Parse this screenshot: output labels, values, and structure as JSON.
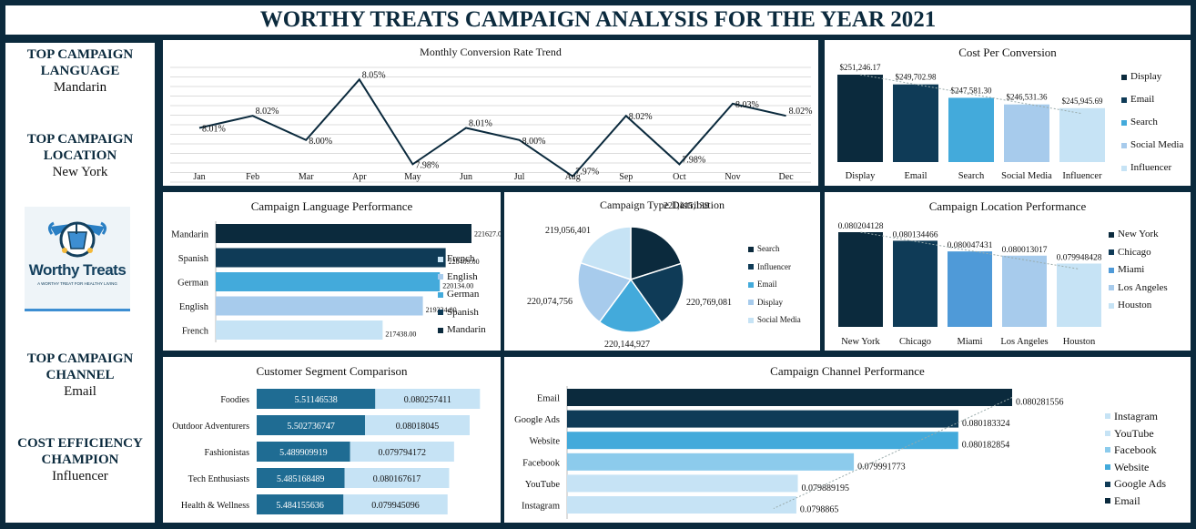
{
  "header": {
    "title": "WORTHY TREATS CAMPAIGN ANALYSIS FOR THE YEAR 2021"
  },
  "kpis": [
    {
      "label": "TOP CAMPAIGN LANGUAGE",
      "value": "Mandarin"
    },
    {
      "label": "TOP CAMPAIGN LOCATION",
      "value": "New York"
    },
    {
      "label": "TOP CAMPAIGN CHANNEL",
      "value": "Email"
    },
    {
      "label": "COST EFFICIENCY CHAMPION",
      "value": "Influencer"
    }
  ],
  "logo": {
    "brand": "Worthy Treats",
    "tagline": "A WORTHY TREAT FOR HEALTHY LIVING"
  },
  "colors": {
    "navy": "#0b2a3d",
    "dark": "#0f3b57",
    "mid": "#43aadb",
    "steel": "#4f9ad8",
    "light": "#a7cbec",
    "pale": "#c6e3f5"
  },
  "chart_data": [
    {
      "id": "monthly",
      "type": "line",
      "title": "Monthly Conversion Rate Trend",
      "categories": [
        "Jan",
        "Feb",
        "Mar",
        "Apr",
        "May",
        "Jun",
        "Jul",
        "Aug",
        "Sep",
        "Oct",
        "Nov",
        "Dec"
      ],
      "values": [
        8.01,
        8.02,
        8.0,
        8.05,
        7.98,
        8.01,
        8.0,
        7.97,
        8.02,
        7.98,
        8.03,
        8.02
      ],
      "labels": [
        "8.01%",
        "8.02%",
        "8.00%",
        "8.05%",
        "7.98%",
        "8.01%",
        "8.00%",
        "7.97%",
        "8.02%",
        "7.98%",
        "8.03%",
        "8.02%"
      ],
      "grid": true
    },
    {
      "id": "cost",
      "type": "bar",
      "title": "Cost Per Conversion",
      "categories": [
        "Display",
        "Email",
        "Search",
        "Social Media",
        "Influencer"
      ],
      "values": [
        251246.17,
        249702.98,
        247581.3,
        246531.36,
        245945.69
      ],
      "labels": [
        "$251,246.17",
        "$249,702.98",
        "$247,581.30",
        "$246,531.36",
        "$245,945.69"
      ],
      "legend": [
        "Display",
        "Email",
        "Search",
        "Social Media",
        "Influencer"
      ],
      "legend_position": "right"
    },
    {
      "id": "language",
      "type": "bar",
      "orientation": "horizontal",
      "title": "Campaign Language Performance",
      "categories": [
        "Mandarin",
        "Spanish",
        "German",
        "English",
        "French"
      ],
      "values": [
        221627.0,
        220409.0,
        220134.0,
        219334.0,
        217438.0
      ],
      "labels": [
        "221627.00",
        "220409.00",
        "220134.00",
        "219334.00",
        "217438.00"
      ],
      "legend": [
        "French",
        "English",
        "German",
        "Spanish",
        "Mandarin"
      ],
      "legend_position": "right"
    },
    {
      "id": "type",
      "type": "pie",
      "title": "Campaign Type Distribution",
      "categories": [
        "Search",
        "Influencer",
        "Email",
        "Display",
        "Social Media"
      ],
      "values": [
        221415139,
        220769081,
        220144927,
        220074756,
        219056401
      ],
      "labels": [
        "221,415,139",
        "220,769,081",
        "220,144,927",
        "220,074,756",
        "219,056,401"
      ],
      "legend": [
        "Search",
        "Influencer",
        "Email",
        "Display",
        "Social Media"
      ],
      "legend_position": "right"
    },
    {
      "id": "location",
      "type": "bar",
      "title": "Campaign Location Performance",
      "categories": [
        "New York",
        "Chicago",
        "Miami",
        "Los Angeles",
        "Houston"
      ],
      "values": [
        0.080204128,
        0.080134466,
        0.080047431,
        0.080013017,
        0.079948428
      ],
      "labels": [
        "0.080204128",
        "0.080134466",
        "0.080047431",
        "0.080013017",
        "0.079948428"
      ],
      "legend": [
        "New York",
        "Chicago",
        "Miami",
        "Los Angeles",
        "Houston"
      ],
      "legend_position": "right"
    },
    {
      "id": "segment",
      "type": "bar",
      "orientation": "horizontal",
      "stacked": true,
      "title": "Customer Segment Comparison",
      "categories": [
        "Foodies",
        "Outdoor Adventurers",
        "Fashionistas",
        "Tech Enthusiasts",
        "Health & Wellness"
      ],
      "series": [
        {
          "values": [
            5.51146538,
            5.502736747,
            5.489909919,
            5.485168489,
            5.484155636
          ],
          "labels": [
            "5.51146538",
            "5.502736747",
            "5.489909919",
            "5.485168489",
            "5.484155636"
          ]
        },
        {
          "values": [
            0.080257411,
            0.08018045,
            0.079794172,
            0.080167617,
            0.079945096
          ],
          "labels": [
            "0.080257411",
            "0.08018045",
            "0.079794172",
            "0.080167617",
            "0.079945096"
          ]
        }
      ]
    },
    {
      "id": "channel",
      "type": "bar",
      "orientation": "horizontal",
      "title": "Campaign Channel Performance",
      "categories": [
        "Email",
        "Google Ads",
        "Website",
        "Facebook",
        "YouTube",
        "Instagram"
      ],
      "values": [
        0.080281556,
        0.080183324,
        0.080182854,
        0.079991773,
        0.079889195,
        0.0798865
      ],
      "labels": [
        "0.080281556",
        "0.080183324",
        "0.080182854",
        "0.079991773",
        "0.079889195",
        "0.0798865"
      ],
      "legend": [
        "Instagram",
        "YouTube",
        "Facebook",
        "Website",
        "Google Ads",
        "Email"
      ],
      "legend_position": "right"
    }
  ]
}
